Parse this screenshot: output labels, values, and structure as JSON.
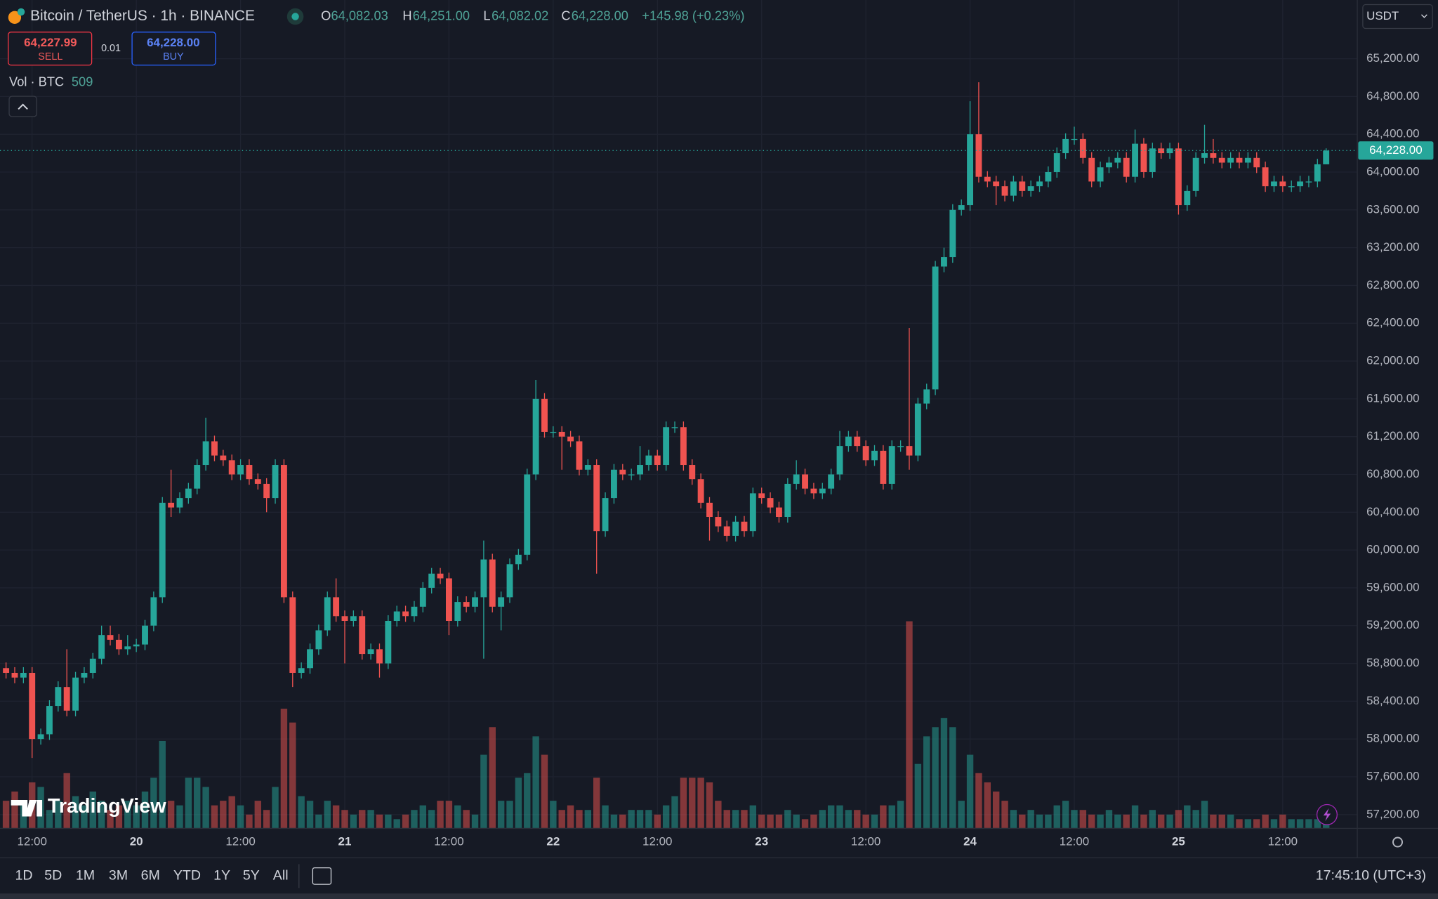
{
  "symbol": {
    "title": "Bitcoin / TetherUS · 1h · BINANCE"
  },
  "legend": {
    "o_label": "O",
    "open": "64,082.03",
    "h_label": "H",
    "high": "64,251.00",
    "l_label": "L",
    "low": "64,082.02",
    "c_label": "C",
    "close": "64,228.00",
    "change": "+145.98 (+0.23%)"
  },
  "trade": {
    "sell_price": "64,227.99",
    "sell": "SELL",
    "quantity": "0.01",
    "buy_price": "64,228.00",
    "buy": "BUY"
  },
  "volume_legend": "Vol · BTC",
  "currency": "USDT",
  "logo": "TradingView",
  "ranges": [
    "1D",
    "5D",
    "1M",
    "3M",
    "6M",
    "YTD",
    "1Y",
    "5Y",
    "All"
  ],
  "clock": "17:45:10 (UTC+3)",
  "chart_data": {
    "type": "candlestick",
    "up_color": "#26a69a",
    "down_color": "#ef5350",
    "grid": true,
    "ylim": [
      57054,
      65821
    ],
    "volume_lim": [
      0,
      45000
    ],
    "yticks": [
      {
        "value": 57200,
        "label": "57,200.00"
      },
      {
        "value": 57600,
        "label": "57,600.00"
      },
      {
        "value": 58000,
        "label": "58,000.00"
      },
      {
        "value": 58400,
        "label": "58,400.00"
      },
      {
        "value": 58800,
        "label": "58,800.00"
      },
      {
        "value": 59200,
        "label": "59,200.00"
      },
      {
        "value": 59600,
        "label": "59,600.00"
      },
      {
        "value": 60000,
        "label": "60,000.00"
      },
      {
        "value": 60400,
        "label": "60,400.00"
      },
      {
        "value": 60800,
        "label": "60,800.00"
      },
      {
        "value": 61200,
        "label": "61,200.00"
      },
      {
        "value": 61600,
        "label": "61,600.00"
      },
      {
        "value": 62000,
        "label": "62,000.00"
      },
      {
        "value": 62400,
        "label": "62,400.00"
      },
      {
        "value": 62800,
        "label": "62,800.00"
      },
      {
        "value": 63200,
        "label": "63,200.00"
      },
      {
        "value": 63600,
        "label": "63,600.00"
      },
      {
        "value": 64000,
        "label": "64,000.00"
      },
      {
        "value": 64400,
        "label": "64,400.00"
      },
      {
        "value": 64800,
        "label": "64,800.00"
      },
      {
        "value": 65200,
        "label": "65,200.00"
      }
    ],
    "categories": [
      null,
      null,
      null,
      "12:00",
      null,
      null,
      null,
      null,
      null,
      null,
      null,
      null,
      null,
      null,
      null,
      "20",
      null,
      null,
      null,
      null,
      null,
      null,
      null,
      null,
      null,
      null,
      null,
      "12:00",
      null,
      null,
      null,
      null,
      null,
      null,
      null,
      null,
      null,
      null,
      null,
      "21",
      null,
      null,
      null,
      null,
      null,
      null,
      null,
      null,
      null,
      null,
      null,
      "12:00",
      null,
      null,
      null,
      null,
      null,
      null,
      null,
      null,
      null,
      null,
      null,
      "22",
      null,
      null,
      null,
      null,
      null,
      null,
      null,
      null,
      null,
      null,
      null,
      "12:00",
      null,
      null,
      null,
      null,
      null,
      null,
      null,
      null,
      null,
      null,
      null,
      "23",
      null,
      null,
      null,
      null,
      null,
      null,
      null,
      null,
      null,
      null,
      null,
      "12:00",
      null,
      null,
      null,
      null,
      null,
      null,
      null,
      null,
      null,
      null,
      null,
      "24",
      null,
      null,
      null,
      null,
      null,
      null,
      null,
      null,
      null,
      null,
      null,
      "12:00",
      null,
      null,
      null,
      null,
      null,
      null,
      null,
      null,
      null,
      null,
      null,
      "25",
      null,
      null,
      null,
      null,
      null,
      null,
      null,
      null,
      null,
      null,
      null,
      "12:00",
      null,
      null,
      null,
      null,
      null
    ],
    "open": [
      58750,
      58700,
      58650,
      58700,
      58000,
      58050,
      58350,
      58550,
      58300,
      58650,
      58700,
      58850,
      59100,
      59050,
      58950,
      58980,
      59000,
      59200,
      59500,
      60500,
      60450,
      60550,
      60650,
      60900,
      61150,
      61000,
      60950,
      60800,
      60900,
      60750,
      60700,
      60550,
      60900,
      59500,
      58700,
      58750,
      58950,
      59150,
      59500,
      59300,
      59250,
      59300,
      58900,
      58950,
      58800,
      59250,
      59350,
      59300,
      59400,
      59600,
      59750,
      59700,
      59250,
      59450,
      59400,
      59500,
      59900,
      59400,
      59500,
      59850,
      59950,
      60800,
      61600,
      61250,
      61250,
      61200,
      61150,
      60850,
      60900,
      60200,
      60550,
      60850,
      60800,
      60800,
      60900,
      61000,
      60900,
      61300,
      61300,
      60900,
      60750,
      60500,
      60350,
      60250,
      60150,
      60300,
      60200,
      60600,
      60550,
      60450,
      60350,
      60700,
      60800,
      60650,
      60600,
      60650,
      60800,
      61100,
      61200,
      61100,
      60950,
      61050,
      60700,
      61100,
      61100,
      61000,
      61550,
      61700,
      63000,
      63100,
      63600,
      63650,
      64400,
      63950,
      63900,
      63850,
      63750,
      63900,
      63800,
      63850,
      63900,
      64000,
      64200,
      64350,
      64350,
      64150,
      63900,
      64050,
      64100,
      64150,
      63950,
      64300,
      64000,
      64250,
      64200,
      64250,
      63650,
      63800,
      64150,
      64200,
      64150,
      64100,
      64150,
      64100,
      64150,
      64050,
      63850,
      63900,
      63850,
      63850,
      63900,
      63900,
      64082.03
    ],
    "high": [
      58810,
      58760,
      58760,
      58760,
      58110,
      58410,
      58610,
      58950,
      58710,
      58760,
      58910,
      59200,
      59200,
      59110,
      59100,
      59060,
      59260,
      59560,
      60560,
      60850,
      60610,
      60710,
      60960,
      61400,
      61210,
      61060,
      61010,
      60960,
      60960,
      60810,
      60760,
      60960,
      60960,
      59560,
      58810,
      59010,
      59210,
      59560,
      59700,
      59360,
      59360,
      59360,
      59010,
      59010,
      59310,
      59410,
      59410,
      59460,
      59660,
      59810,
      59810,
      59760,
      59510,
      59510,
      59560,
      60100,
      59960,
      59560,
      59910,
      60010,
      60860,
      61800,
      61660,
      61310,
      61310,
      61260,
      61210,
      60960,
      60960,
      60610,
      60910,
      60910,
      60860,
      61100,
      61060,
      61060,
      61360,
      61360,
      61360,
      60960,
      60810,
      60560,
      60410,
      60310,
      60360,
      60360,
      60660,
      60660,
      60610,
      60510,
      60760,
      60950,
      60860,
      60710,
      60710,
      60860,
      61260,
      61260,
      61260,
      61160,
      61110,
      61110,
      61160,
      61160,
      62350,
      61610,
      61760,
      63060,
      63200,
      63660,
      63710,
      64750,
      64950,
      64010,
      63960,
      63910,
      63960,
      63960,
      63910,
      63960,
      64060,
      64260,
      64410,
      64480,
      64410,
      64210,
      64110,
      64160,
      64210,
      64210,
      64450,
      64360,
      64310,
      64310,
      64310,
      64310,
      63860,
      64210,
      64500,
      64350,
      64210,
      64210,
      64210,
      64210,
      64210,
      64110,
      63960,
      63960,
      63910,
      63960,
      63960,
      64140,
      64251
    ],
    "low": [
      58640,
      58590,
      58590,
      57800,
      57940,
      57990,
      58290,
      58240,
      58240,
      58590,
      58640,
      58790,
      58990,
      58890,
      58890,
      58920,
      58940,
      59140,
      59440,
      60350,
      60390,
      60490,
      60590,
      60840,
      60940,
      60890,
      60740,
      60740,
      60690,
      60640,
      60400,
      60490,
      59440,
      58550,
      58640,
      58690,
      58890,
      59090,
      59240,
      58800,
      59190,
      58840,
      58840,
      58650,
      58740,
      59190,
      59240,
      59240,
      59340,
      59540,
      59640,
      59100,
      59190,
      59340,
      59340,
      58850,
      59340,
      59150,
      59440,
      59790,
      59890,
      60740,
      61190,
      61190,
      60850,
      61090,
      60790,
      60790,
      59750,
      60140,
      60490,
      60740,
      60740,
      60740,
      60840,
      60840,
      60840,
      61240,
      60840,
      60690,
      60440,
      60100,
      60190,
      60090,
      60090,
      60140,
      60140,
      60490,
      60390,
      60290,
      60290,
      60640,
      60590,
      60540,
      60540,
      60590,
      60740,
      61040,
      61040,
      60890,
      60890,
      60640,
      60640,
      61040,
      60850,
      60940,
      61490,
      61640,
      62940,
      63040,
      63540,
      63590,
      63890,
      63840,
      63650,
      63690,
      63690,
      63740,
      63740,
      63790,
      63840,
      63940,
      64140,
      64290,
      64090,
      63840,
      63840,
      63990,
      64040,
      63890,
      63890,
      63940,
      63940,
      64140,
      64140,
      63550,
      63590,
      63740,
      64090,
      64090,
      64040,
      64040,
      64040,
      64040,
      63990,
      63790,
      63790,
      63790,
      63790,
      63790,
      63840,
      63840,
      64082.02
    ],
    "close": [
      58700,
      58650,
      58700,
      58000,
      58050,
      58350,
      58550,
      58300,
      58650,
      58700,
      58850,
      59100,
      59050,
      58950,
      58980,
      59000,
      59200,
      59500,
      60500,
      60450,
      60550,
      60650,
      60900,
      61150,
      61000,
      60950,
      60800,
      60900,
      60750,
      60700,
      60550,
      60900,
      59500,
      58700,
      58750,
      58950,
      59150,
      59500,
      59300,
      59250,
      59300,
      58900,
      58950,
      58800,
      59250,
      59350,
      59300,
      59400,
      59600,
      59750,
      59700,
      59250,
      59450,
      59400,
      59500,
      59900,
      59400,
      59500,
      59850,
      59950,
      60800,
      61600,
      61250,
      61250,
      61200,
      61150,
      60850,
      60900,
      60200,
      60550,
      60850,
      60800,
      60800,
      60900,
      61000,
      60900,
      61300,
      61300,
      60900,
      60750,
      60500,
      60350,
      60250,
      60150,
      60300,
      60200,
      60600,
      60550,
      60450,
      60350,
      60700,
      60800,
      60650,
      60600,
      60650,
      60800,
      61100,
      61200,
      61100,
      60950,
      61050,
      60700,
      61100,
      61100,
      61000,
      61550,
      61700,
      63000,
      63100,
      63600,
      63650,
      64400,
      63950,
      63900,
      63850,
      63750,
      63900,
      63800,
      63850,
      63900,
      64000,
      64200,
      64350,
      64350,
      64150,
      63900,
      64050,
      64100,
      64150,
      63950,
      64300,
      64000,
      64250,
      64200,
      64250,
      63650,
      63800,
      64150,
      64200,
      64150,
      64100,
      64150,
      64100,
      64150,
      64050,
      63850,
      63900,
      63850,
      63850,
      63900,
      63900,
      64082.03,
      64228
    ],
    "volume": [
      1500,
      2000,
      1250,
      2500,
      2250,
      1000,
      1500,
      3000,
      1750,
      1250,
      2000,
      1500,
      1000,
      1250,
      1500,
      1250,
      2000,
      2750,
      4750,
      1500,
      1250,
      2750,
      2750,
      2250,
      1250,
      1500,
      1750,
      1250,
      750,
      1500,
      1000,
      2250,
      6500,
      5750,
      1750,
      1500,
      750,
      1500,
      1250,
      1000,
      750,
      1000,
      1000,
      750,
      750,
      500,
      750,
      1000,
      1250,
      1000,
      1500,
      1500,
      1250,
      1000,
      750,
      4000,
      5500,
      1500,
      1500,
      2750,
      3000,
      5000,
      4000,
      1500,
      1000,
      1250,
      1000,
      1000,
      2750,
      1250,
      750,
      750,
      1000,
      1000,
      1000,
      750,
      1250,
      1750,
      2750,
      2750,
      2750,
      2500,
      1500,
      1000,
      1000,
      1000,
      1250,
      750,
      750,
      750,
      1000,
      750,
      500,
      750,
      1000,
      1250,
      1250,
      1000,
      1000,
      750,
      750,
      1250,
      1250,
      1500,
      11250,
      3500,
      5000,
      5500,
      6000,
      5500,
      1500,
      4000,
      3000,
      2500,
      2000,
      1500,
      1000,
      750,
      1000,
      750,
      750,
      1250,
      1500,
      1000,
      1000,
      750,
      750,
      1000,
      750,
      750,
      1250,
      750,
      1000,
      750,
      750,
      1000,
      1250,
      1000,
      1500,
      750,
      750,
      750,
      500,
      500,
      500,
      750,
      500,
      750,
      500,
      500,
      500,
      500,
      509
    ]
  }
}
